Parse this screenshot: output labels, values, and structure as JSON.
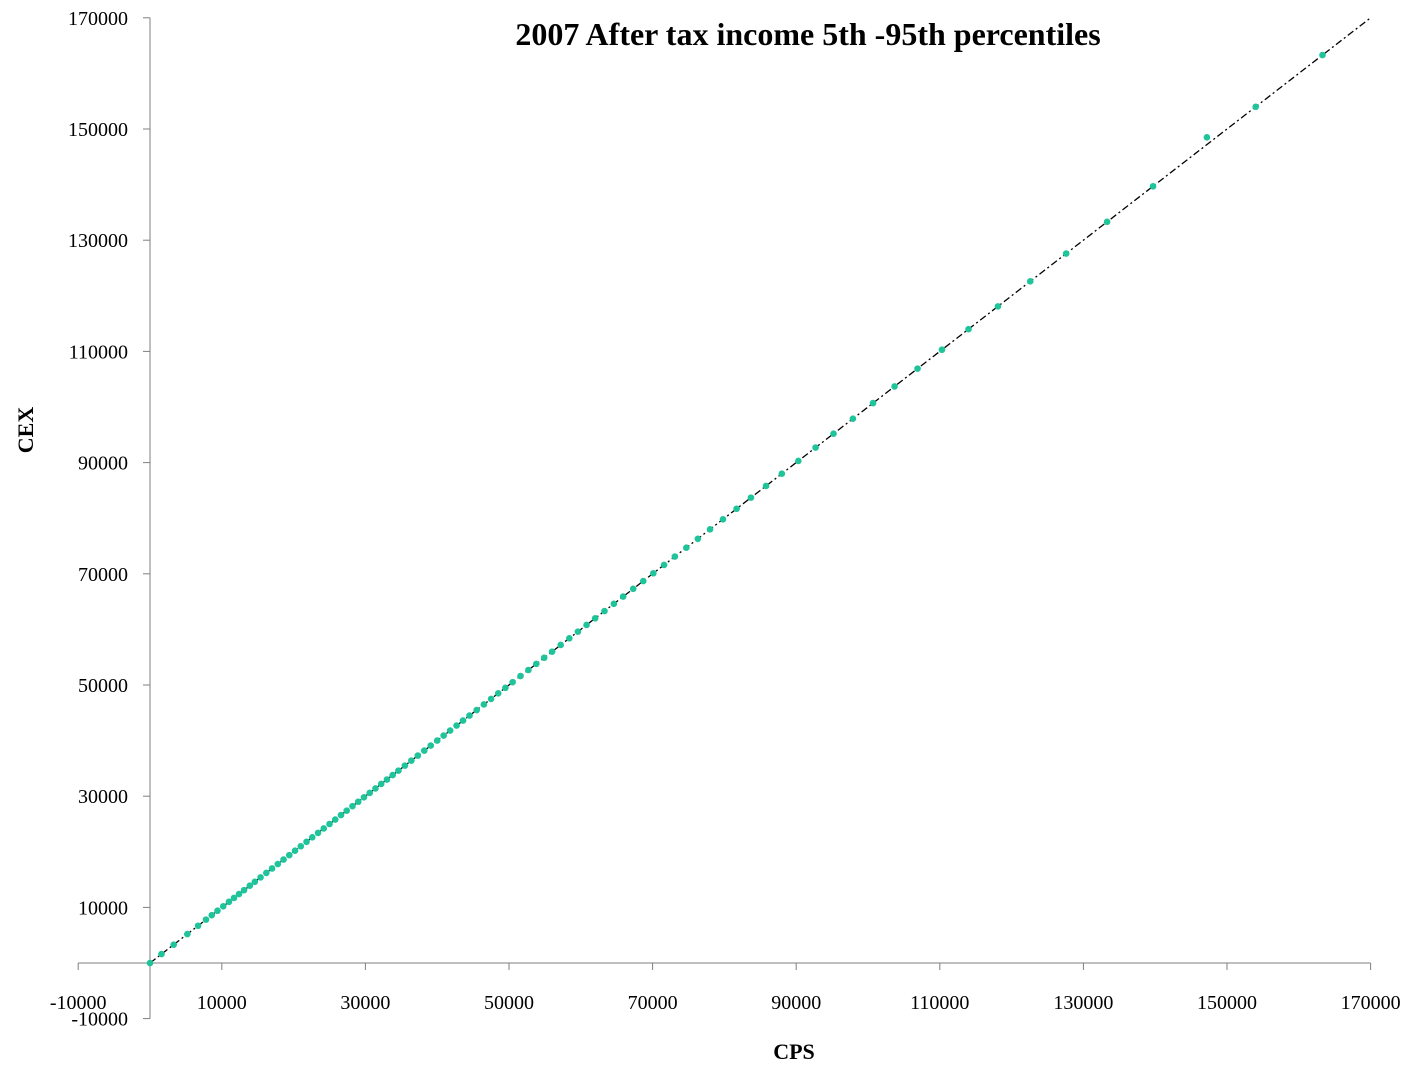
{
  "chart_data": {
    "type": "scatter",
    "title": "2007 After tax income 5th -95th percentiles",
    "xlabel": "CPS",
    "ylabel": "CEX",
    "xlim": [
      -10000,
      170000
    ],
    "ylim": [
      -10000,
      170000
    ],
    "x_ticks": [
      "-10000",
      "10000",
      "30000",
      "50000",
      "70000",
      "90000",
      "110000",
      "130000",
      "150000",
      "170000"
    ],
    "y_ticks": [
      "-10000",
      "10000",
      "30000",
      "50000",
      "70000",
      "90000",
      "110000",
      "130000",
      "150000",
      "170000"
    ],
    "grid": false,
    "legend": "none",
    "marker_color": "#1fc49a",
    "line_color": "#000000",
    "series": [
      {
        "values": [
          [
            0,
            0
          ],
          [
            1600,
            1600
          ],
          [
            3300,
            3300
          ],
          [
            5200,
            5200
          ],
          [
            6700,
            6700
          ],
          [
            7800,
            7800
          ],
          [
            8600,
            8600
          ],
          [
            9400,
            9400
          ],
          [
            10200,
            10200
          ],
          [
            11000,
            11000
          ],
          [
            11700,
            11700
          ],
          [
            12400,
            12400
          ],
          [
            13100,
            13100
          ],
          [
            13900,
            13900
          ],
          [
            14600,
            14600
          ],
          [
            15400,
            15400
          ],
          [
            16200,
            16200
          ],
          [
            17000,
            17000
          ],
          [
            17800,
            17800
          ],
          [
            18600,
            18600
          ],
          [
            19400,
            19400
          ],
          [
            20200,
            20200
          ],
          [
            21000,
            21000
          ],
          [
            21800,
            21800
          ],
          [
            22600,
            22600
          ],
          [
            23400,
            23400
          ],
          [
            24200,
            24200
          ],
          [
            25000,
            25000
          ],
          [
            25800,
            25800
          ],
          [
            26600,
            26600
          ],
          [
            27400,
            27400
          ],
          [
            28200,
            28200
          ],
          [
            29000,
            29000
          ],
          [
            29800,
            29800
          ],
          [
            30600,
            30600
          ],
          [
            31400,
            31400
          ],
          [
            32200,
            32200
          ],
          [
            33000,
            33000
          ],
          [
            33800,
            33800
          ],
          [
            34600,
            34600
          ],
          [
            35500,
            35500
          ],
          [
            36400,
            36400
          ],
          [
            37300,
            37300
          ],
          [
            38200,
            38200
          ],
          [
            39100,
            39100
          ],
          [
            40000,
            40000
          ],
          [
            40900,
            40900
          ],
          [
            41800,
            41800
          ],
          [
            42700,
            42700
          ],
          [
            43600,
            43600
          ],
          [
            44500,
            44500
          ],
          [
            45500,
            45500
          ],
          [
            46500,
            46500
          ],
          [
            47500,
            47500
          ],
          [
            48500,
            48500
          ],
          [
            49500,
            49500
          ],
          [
            50500,
            50500
          ],
          [
            51600,
            51600
          ],
          [
            52700,
            52700
          ],
          [
            53800,
            53800
          ],
          [
            54900,
            54900
          ],
          [
            56000,
            56000
          ],
          [
            57200,
            57200
          ],
          [
            58400,
            58400
          ],
          [
            59600,
            59600
          ],
          [
            60800,
            60800
          ],
          [
            62000,
            62000
          ],
          [
            63300,
            63300
          ],
          [
            64600,
            64600
          ],
          [
            65900,
            65900
          ],
          [
            67300,
            67300
          ],
          [
            68700,
            68700
          ],
          [
            70100,
            70100
          ],
          [
            71600,
            71600
          ],
          [
            73100,
            73100
          ],
          [
            74700,
            74700
          ],
          [
            76300,
            76300
          ],
          [
            78000,
            78000
          ],
          [
            79800,
            79800
          ],
          [
            81700,
            81700
          ],
          [
            83700,
            83700
          ],
          [
            85800,
            85800
          ],
          [
            88000,
            88000
          ],
          [
            90300,
            90300
          ],
          [
            92700,
            92700
          ],
          [
            95200,
            95200
          ],
          [
            97900,
            97900
          ],
          [
            100700,
            100700
          ],
          [
            103700,
            103700
          ],
          [
            106900,
            106900
          ],
          [
            110300,
            110300
          ],
          [
            114000,
            114000
          ],
          [
            118100,
            118100
          ],
          [
            122600,
            122600
          ],
          [
            127600,
            127600
          ],
          [
            133300,
            133300
          ],
          [
            139700,
            139700
          ],
          [
            147200,
            148500
          ],
          [
            154000,
            154000
          ],
          [
            163300,
            163300
          ]
        ]
      }
    ]
  }
}
